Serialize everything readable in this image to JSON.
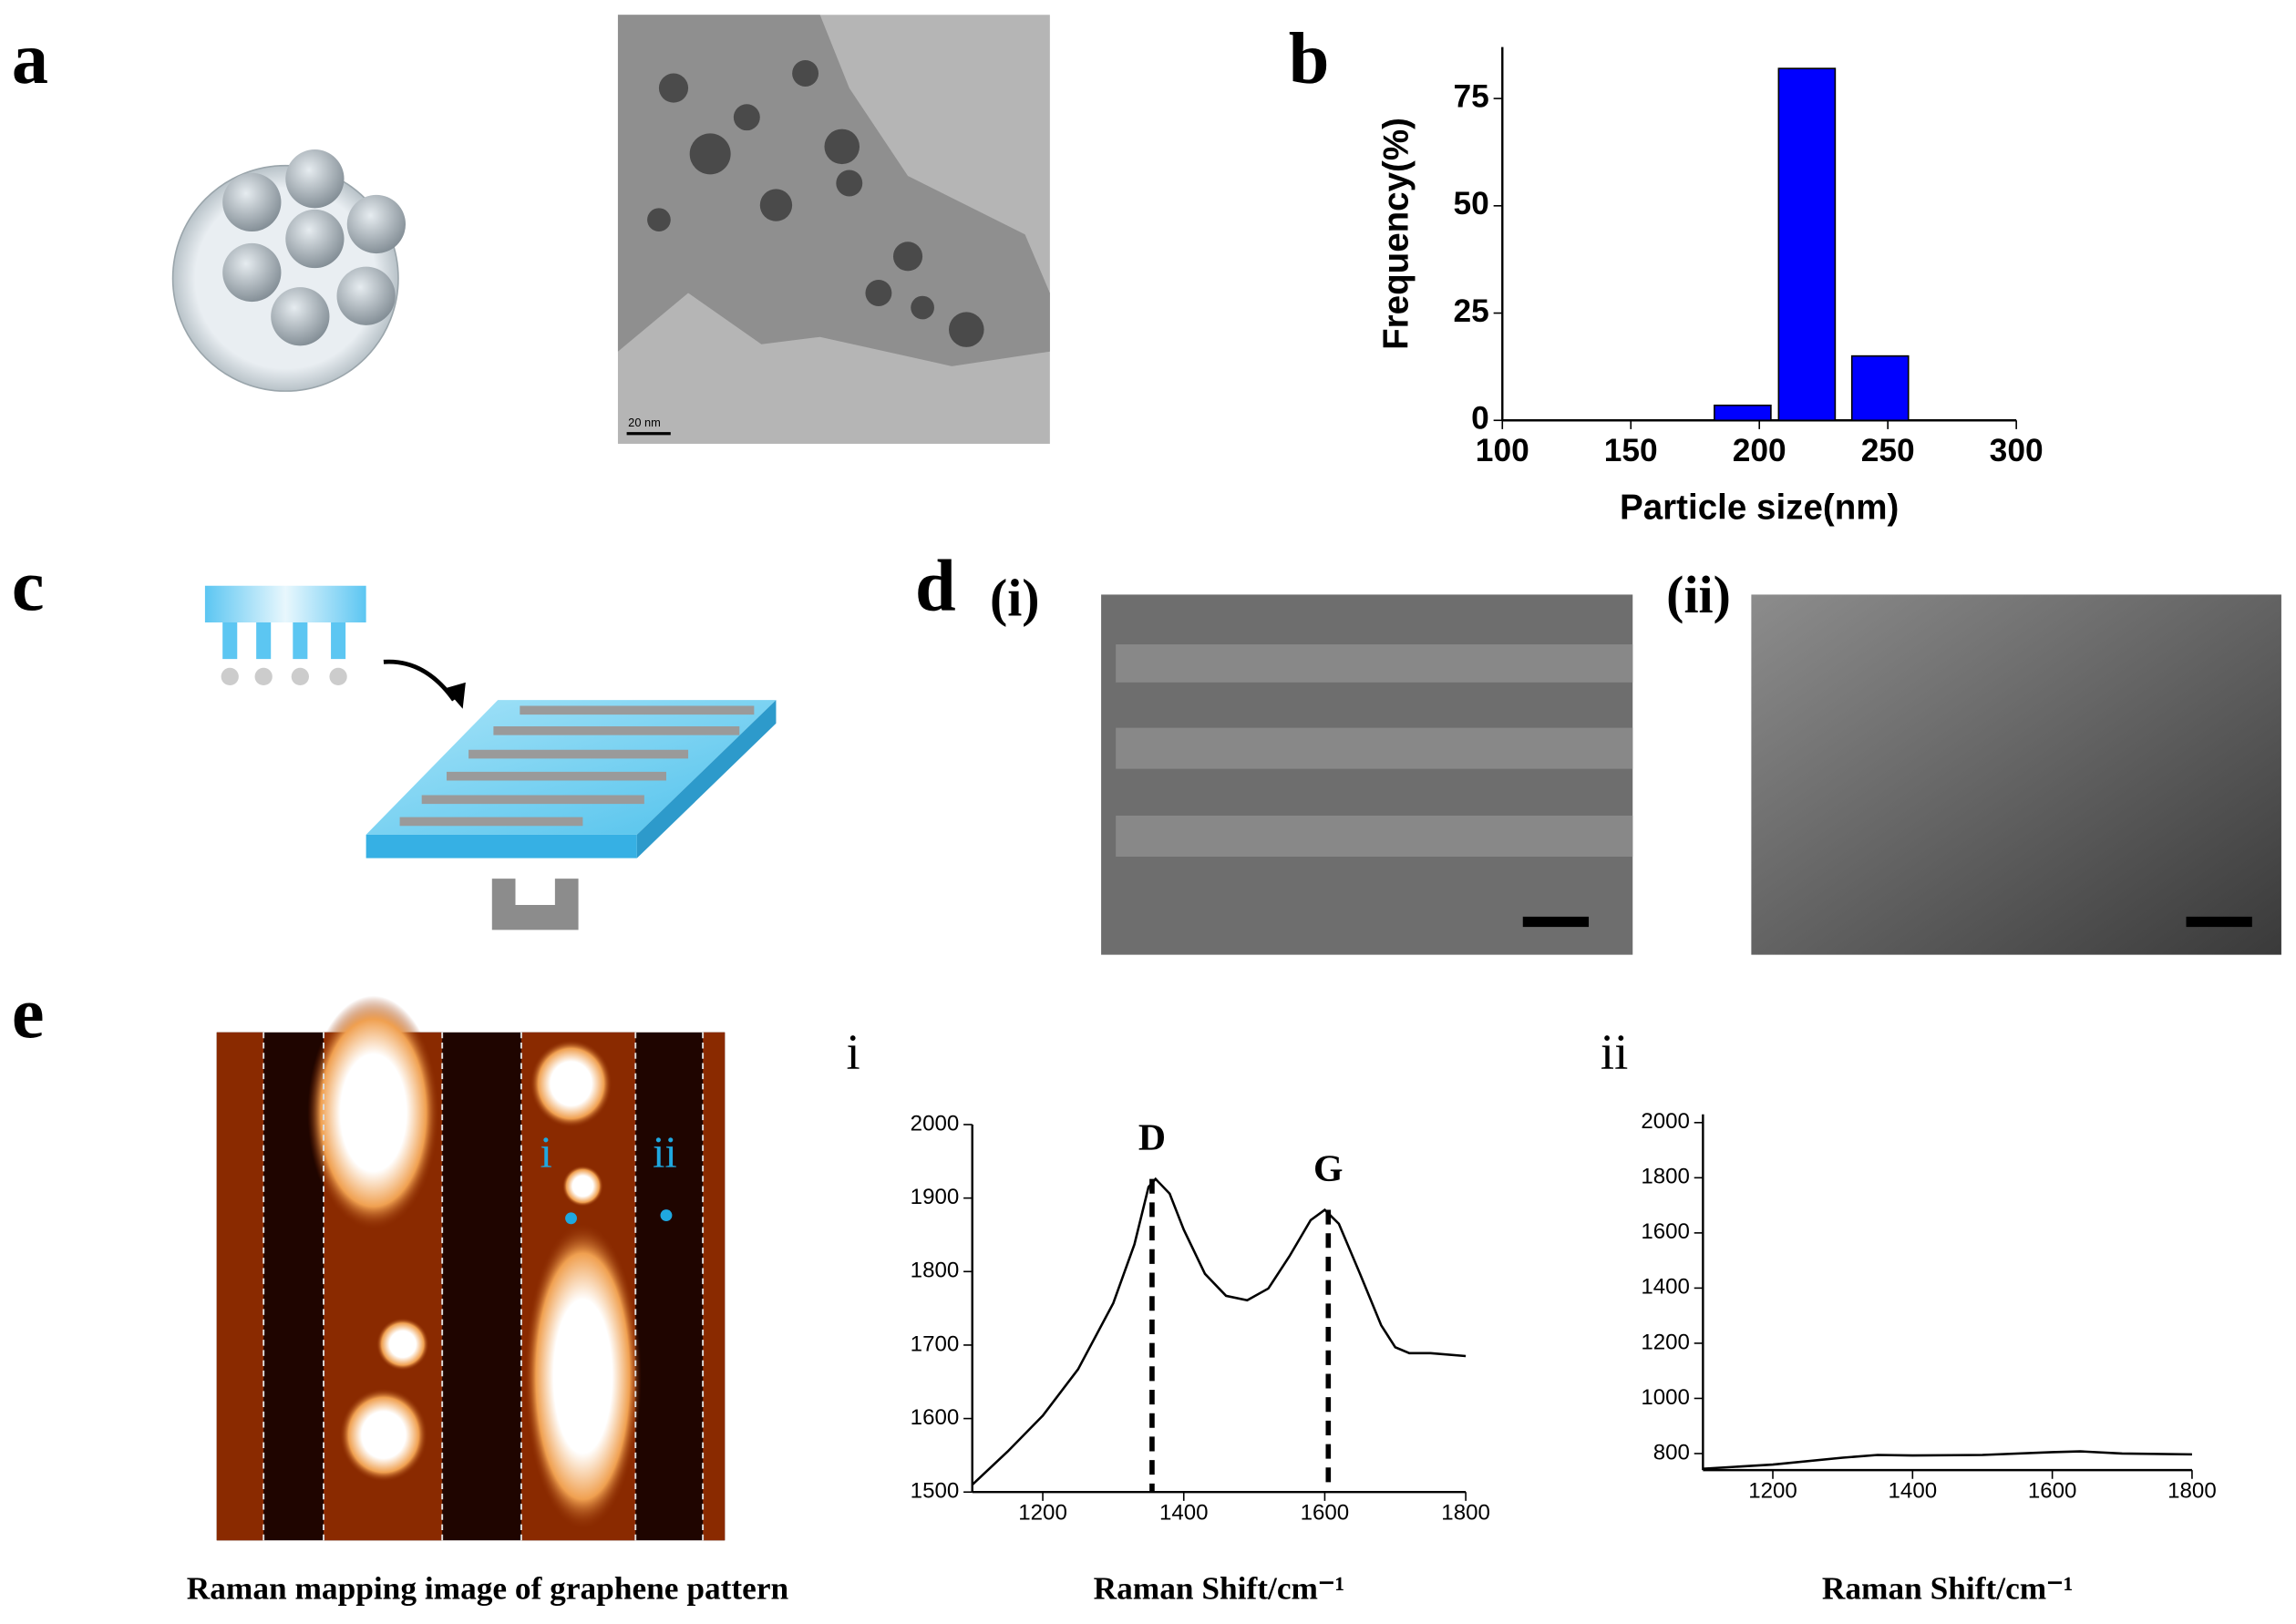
{
  "chart_data": [
    {
      "type": "bar",
      "x": [
        193.5,
        218.5,
        247
      ],
      "values": [
        3.5,
        82,
        15
      ],
      "color": "#0000ff",
      "xlim": [
        100,
        300
      ],
      "ylim": [
        0,
        87
      ],
      "xticks": [
        100,
        150,
        200,
        250,
        300
      ],
      "yticks": [
        0,
        25,
        50,
        75
      ],
      "xlabel": "Particle size(nm)",
      "ylabel": "Frequency(%)"
    },
    {
      "type": "line",
      "title": "i",
      "x": [
        1100,
        1150,
        1200,
        1250,
        1300,
        1330,
        1350,
        1360,
        1380,
        1400,
        1430,
        1460,
        1490,
        1520,
        1550,
        1580,
        1600,
        1620,
        1650,
        1680,
        1700,
        1720,
        1750,
        1800
      ],
      "values": [
        1510,
        1555,
        1604,
        1667,
        1757,
        1837,
        1915,
        1926,
        1906,
        1857,
        1797,
        1767,
        1761,
        1777,
        1821,
        1870,
        1884,
        1865,
        1797,
        1727,
        1697,
        1689,
        1689,
        1685
      ],
      "color": "#000000",
      "xlim": [
        1100,
        1800
      ],
      "ylim": [
        1500,
        2000
      ],
      "xticks": [
        1200,
        1400,
        1600,
        1800
      ],
      "yticks": [
        1500,
        1600,
        1700,
        1800,
        1900,
        2000
      ],
      "xlabel": "Raman Shift/cm⁻¹",
      "annotations": [
        {
          "text": "D",
          "x": 1355,
          "y": 1926
        },
        {
          "text": "G",
          "x": 1605,
          "y": 1884
        }
      ]
    },
    {
      "type": "line",
      "title": "ii",
      "x": [
        1100,
        1200,
        1300,
        1350,
        1400,
        1500,
        1600,
        1640,
        1700,
        1800
      ],
      "values": [
        745,
        760,
        785,
        795,
        793,
        795,
        805,
        808,
        800,
        797
      ],
      "color": "#000000",
      "xlim": [
        1100,
        1800
      ],
      "ylim": [
        740,
        2030
      ],
      "xticks": [
        1200,
        1400,
        1600,
        1800
      ],
      "yticks": [
        800,
        1000,
        1200,
        1400,
        1600,
        1800,
        2000
      ],
      "xlabel": "Raman Shift/cm⁻¹"
    }
  ],
  "panel_labels": [
    "a",
    "b",
    "c",
    "d",
    "e"
  ],
  "sem_labels": [
    "(i)",
    "(ii)"
  ],
  "tem_scale": "20 nm",
  "map_points": [
    "i",
    "ii"
  ],
  "map_caption": "Raman mapping image of graphene pattern"
}
